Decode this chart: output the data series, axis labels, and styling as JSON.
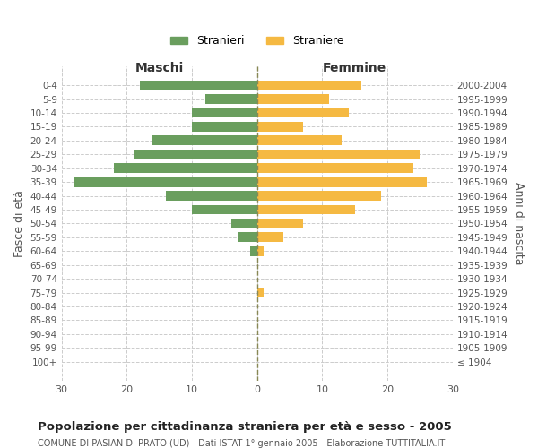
{
  "age_groups": [
    "100+",
    "95-99",
    "90-94",
    "85-89",
    "80-84",
    "75-79",
    "70-74",
    "65-69",
    "60-64",
    "55-59",
    "50-54",
    "45-49",
    "40-44",
    "35-39",
    "30-34",
    "25-29",
    "20-24",
    "15-19",
    "10-14",
    "5-9",
    "0-4"
  ],
  "birth_years": [
    "≤ 1904",
    "1905-1909",
    "1910-1914",
    "1915-1919",
    "1920-1924",
    "1925-1929",
    "1930-1934",
    "1935-1939",
    "1940-1944",
    "1945-1949",
    "1950-1954",
    "1955-1959",
    "1960-1964",
    "1965-1969",
    "1970-1974",
    "1975-1979",
    "1980-1984",
    "1985-1989",
    "1990-1994",
    "1995-1999",
    "2000-2004"
  ],
  "males": [
    0,
    0,
    0,
    0,
    0,
    0,
    0,
    0,
    1,
    3,
    4,
    10,
    14,
    28,
    22,
    19,
    16,
    10,
    10,
    8,
    18
  ],
  "females": [
    0,
    0,
    0,
    0,
    0,
    1,
    0,
    0,
    1,
    4,
    7,
    15,
    19,
    26,
    24,
    25,
    13,
    7,
    14,
    11,
    16
  ],
  "male_color": "#6a9e5e",
  "female_color": "#f5b942",
  "title": "Popolazione per cittadinanza straniera per età e sesso - 2005",
  "subtitle": "COMUNE DI PASIAN DI PRATO (UD) - Dati ISTAT 1° gennaio 2005 - Elaborazione TUTTITALIA.IT",
  "left_header": "Maschi",
  "right_header": "Femmine",
  "left_ylabel": "Fasce di età",
  "right_ylabel": "Anni di nascita",
  "legend_male": "Stranieri",
  "legend_female": "Straniere",
  "xlim": 30,
  "background_color": "#ffffff",
  "grid_color": "#cccccc"
}
